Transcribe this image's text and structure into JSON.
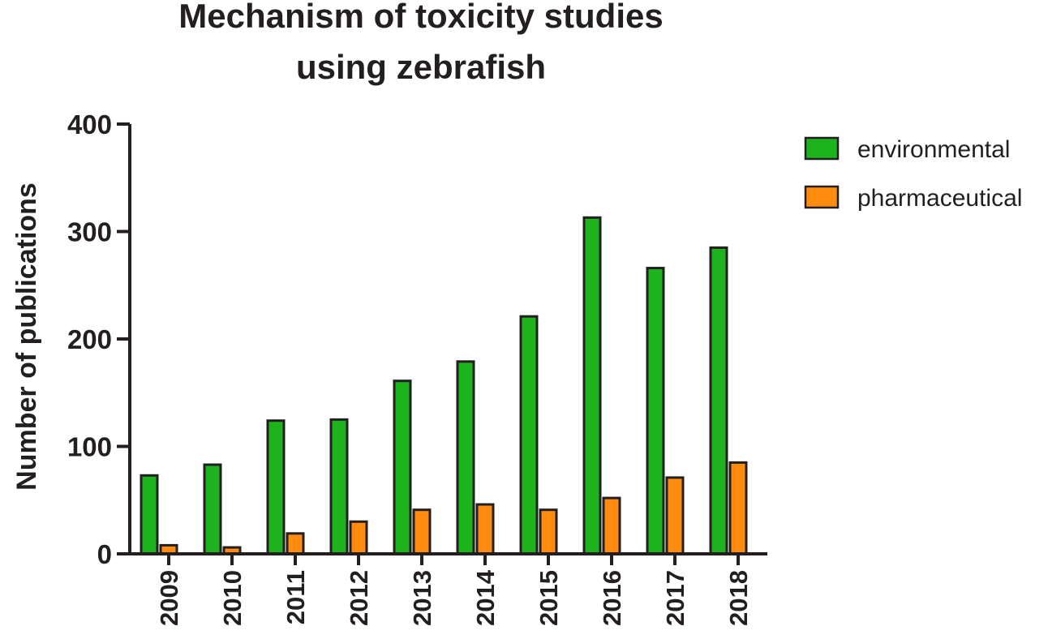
{
  "chart_data": {
    "type": "bar",
    "title": [
      "Mechanism of toxicity studies",
      "using zebrafish"
    ],
    "xlabel": "",
    "ylabel": "Number of publications",
    "ylim": [
      0,
      400
    ],
    "yticks": [
      "0",
      "100",
      "200",
      "300",
      "400"
    ],
    "categories": [
      "2009",
      "2010",
      "2011",
      "2012",
      "2013",
      "2014",
      "2015",
      "2016",
      "2017",
      "2018"
    ],
    "series": [
      {
        "name": "environmental",
        "color": "#1db31d",
        "values": [
          73,
          83,
          124,
          125,
          161,
          179,
          221,
          313,
          266,
          285
        ]
      },
      {
        "name": "pharmaceutical",
        "color": "#ff8c0f",
        "values": [
          8,
          6,
          19,
          30,
          41,
          46,
          41,
          52,
          71,
          85
        ]
      }
    ],
    "legend": "top-right",
    "grid": false
  }
}
